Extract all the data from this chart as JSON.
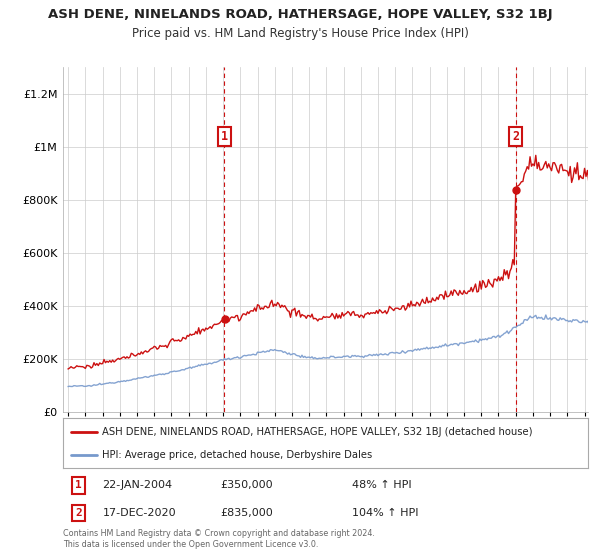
{
  "title": "ASH DENE, NINELANDS ROAD, HATHERSAGE, HOPE VALLEY, S32 1BJ",
  "subtitle": "Price paid vs. HM Land Registry's House Price Index (HPI)",
  "ylim": [
    0,
    1300000
  ],
  "yticks": [
    0,
    200000,
    400000,
    600000,
    800000,
    1000000,
    1200000
  ],
  "ytick_labels": [
    "£0",
    "£200K",
    "£400K",
    "£600K",
    "£800K",
    "£1M",
    "£1.2M"
  ],
  "xstart_year": 1995,
  "xend_year": 2025,
  "sale1_date": 2004.06,
  "sale1_price": 350000,
  "sale2_date": 2021.0,
  "sale2_price": 835000,
  "legend_entries": [
    "ASH DENE, NINELANDS ROAD, HATHERSAGE, HOPE VALLEY, S32 1BJ (detached house)",
    "HPI: Average price, detached house, Derbyshire Dales"
  ],
  "annotation1_date": "22-JAN-2004",
  "annotation1_price": "£350,000",
  "annotation1_pct": "48% ↑ HPI",
  "annotation2_date": "17-DEC-2020",
  "annotation2_price": "£835,000",
  "annotation2_pct": "104% ↑ HPI",
  "hpi_color": "#7799cc",
  "price_color": "#cc1111",
  "sale_color": "#cc1111",
  "dashed_line_color": "#cc1111",
  "background_color": "#ffffff",
  "grid_color": "#cccccc",
  "footnote": "Contains HM Land Registry data © Crown copyright and database right 2024.\nThis data is licensed under the Open Government Licence v3.0."
}
